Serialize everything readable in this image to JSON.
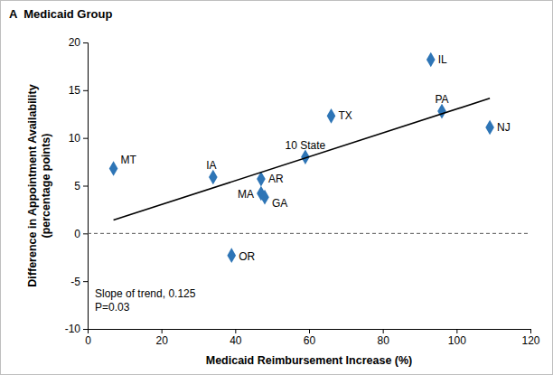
{
  "chart_data": {
    "type": "scatter",
    "title": "A  Medicaid Group",
    "xlabel": "Medicaid Reimbursement Increase (%)",
    "ylabel": [
      "Difference in Appointment Availability",
      "(percentage points)"
    ],
    "xlim": [
      0,
      120
    ],
    "xticks": [
      0,
      20,
      40,
      60,
      80,
      100,
      120
    ],
    "ylim": [
      -10,
      20
    ],
    "yticks": [
      -10,
      -5,
      0,
      5,
      10,
      15,
      20
    ],
    "grid": false,
    "series": [
      {
        "type": "scatter",
        "marker": "diamond",
        "color": "#2e75b6",
        "labels": [
          "MT",
          "IA",
          "AR",
          "MA",
          "GA",
          "OR",
          "10 State",
          "TX",
          "IL",
          "PA",
          "NJ"
        ],
        "x": [
          7,
          34,
          47,
          47,
          48,
          39,
          59,
          66,
          93,
          96,
          109
        ],
        "values": [
          6.8,
          5.9,
          5.7,
          4.2,
          3.8,
          -2.3,
          8.0,
          12.3,
          18.2,
          12.8,
          11.1
        ]
      },
      {
        "type": "line",
        "line_style": "solid",
        "color": "#000000",
        "x": [
          7,
          109
        ],
        "values": [
          1.4,
          14.15
        ]
      }
    ],
    "reference_line": {
      "y": 0,
      "line_style": "dashed",
      "color": "#555555"
    },
    "annotations": [
      "Slope of trend, 0.125",
      "P=0.03"
    ]
  }
}
